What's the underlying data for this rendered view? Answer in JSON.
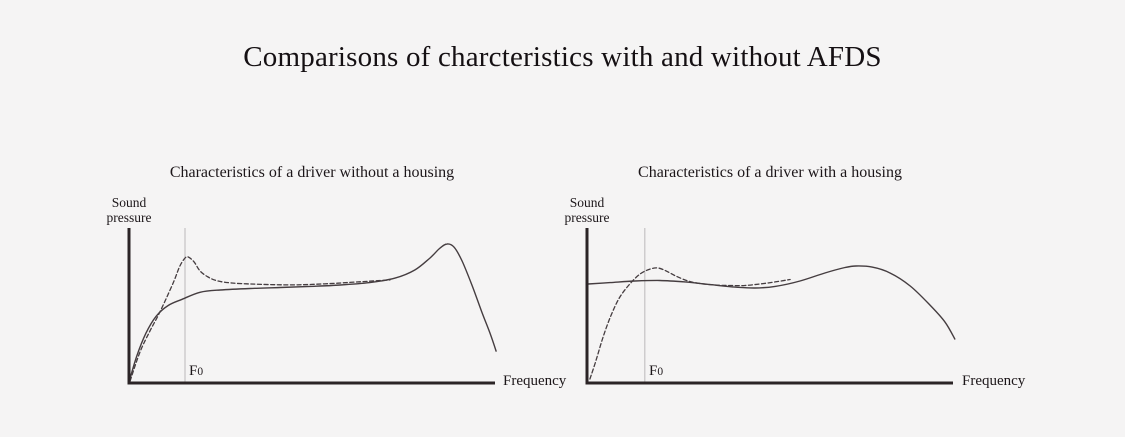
{
  "page": {
    "background": "#f5f4f4"
  },
  "title": "Comparisons of charcteristics with and without AFDS",
  "colors": {
    "text": "#1a1416",
    "axis": "#2b2426",
    "curve": "#453d40",
    "f0_line": "#bcb9ba"
  },
  "chart_data": [
    {
      "type": "line",
      "title": "Characteristics of a driver without a housing",
      "xlabel": "Frequency",
      "ylabel": "Sound pressure",
      "x_axis": {
        "type": "qualitative",
        "ticks": [],
        "range": [
          0,
          100
        ]
      },
      "y_axis": {
        "type": "qualitative",
        "ticks": [],
        "range": [
          0,
          100
        ]
      },
      "grid": false,
      "legend": false,
      "annotations": [
        {
          "type": "vline",
          "label": "F0",
          "label_main": "F",
          "label_sub": "0",
          "x": 15.3
        }
      ],
      "series": [
        {
          "name": "dashed",
          "style": "dashed",
          "points": [
            [
              0.3,
              1.3
            ],
            [
              3,
              20
            ],
            [
              5.7,
              33.5
            ],
            [
              7.9,
              43.2
            ],
            [
              10.1,
              54.2
            ],
            [
              12.3,
              65.8
            ],
            [
              13.9,
              75.5
            ],
            [
              15.3,
              80.6
            ],
            [
              16.2,
              81.3
            ],
            [
              17.8,
              78.1
            ],
            [
              19.4,
              72.3
            ],
            [
              21.6,
              68.4
            ],
            [
              24.3,
              65.8
            ],
            [
              28.1,
              64.5
            ],
            [
              33.1,
              63.9
            ],
            [
              38.5,
              63.5
            ],
            [
              44,
              63.3
            ],
            [
              50,
              63.6
            ],
            [
              57,
              64.4
            ],
            [
              63,
              65.3
            ],
            [
              68,
              66
            ],
            [
              71.3,
              66.5
            ]
          ]
        },
        {
          "name": "solid",
          "style": "solid",
          "points": [
            [
              0,
              0.5
            ],
            [
              2.2,
              18
            ],
            [
              4.6,
              32
            ],
            [
              7.4,
              43
            ],
            [
              10.7,
              50
            ],
            [
              14.5,
              54
            ],
            [
              19.4,
              58.5
            ],
            [
              24.9,
              60
            ],
            [
              33.1,
              61
            ],
            [
              41.3,
              61.6
            ],
            [
              49.5,
              62.3
            ],
            [
              57.7,
              63.2
            ],
            [
              65.8,
              64.8
            ],
            [
              72.7,
              67.7
            ],
            [
              78.1,
              72.9
            ],
            [
              82.2,
              80.6
            ],
            [
              85,
              87.1
            ],
            [
              86.9,
              89.7
            ],
            [
              88.8,
              87.7
            ],
            [
              91,
              78.7
            ],
            [
              93.7,
              63.2
            ],
            [
              96.4,
              45.8
            ],
            [
              98.6,
              32.3
            ],
            [
              100.3,
              20.6
            ]
          ]
        }
      ]
    },
    {
      "type": "line",
      "title": "Characteristics of a driver with a housing",
      "xlabel": "Frequency",
      "ylabel": "Sound pressure",
      "x_axis": {
        "type": "qualitative",
        "ticks": [],
        "range": [
          0,
          100
        ]
      },
      "y_axis": {
        "type": "qualitative",
        "ticks": [],
        "range": [
          0,
          100
        ]
      },
      "grid": false,
      "legend": false,
      "annotations": [
        {
          "type": "vline",
          "label": "F0",
          "label_main": "F",
          "label_sub": "0",
          "x": 15.8
        }
      ],
      "series": [
        {
          "name": "dashed",
          "style": "dashed",
          "points": [
            [
              0.8,
              2.6
            ],
            [
              2.5,
              14.8
            ],
            [
              4.4,
              29.7
            ],
            [
              6.6,
              43.9
            ],
            [
              9,
              55.5
            ],
            [
              11.7,
              63.9
            ],
            [
              14.5,
              70.3
            ],
            [
              17.2,
              73.5
            ],
            [
              19.4,
              74.2
            ],
            [
              21.6,
              72.3
            ],
            [
              24.3,
              69
            ],
            [
              27.6,
              65.8
            ],
            [
              30.9,
              64.2
            ],
            [
              35,
              63.2
            ],
            [
              39.1,
              62.9
            ],
            [
              43.2,
              62.9
            ],
            [
              47.3,
              63.9
            ],
            [
              51.4,
              65.2
            ],
            [
              55.5,
              66.8
            ]
          ]
        },
        {
          "name": "solid",
          "style": "solid",
          "points": [
            [
              0.3,
              63.9
            ],
            [
              6.3,
              64.8
            ],
            [
              13.1,
              65.8
            ],
            [
              19.9,
              66.1
            ],
            [
              26.8,
              65.2
            ],
            [
              33.6,
              63.5
            ],
            [
              40.4,
              61.9
            ],
            [
              45.9,
              61.3
            ],
            [
              51.4,
              62.3
            ],
            [
              58.2,
              65.8
            ],
            [
              65,
              71
            ],
            [
              70.5,
              74.5
            ],
            [
              73.5,
              75.5
            ],
            [
              77.9,
              74.8
            ],
            [
              82.8,
              71
            ],
            [
              88.3,
              62.6
            ],
            [
              93.7,
              50.3
            ],
            [
              97.8,
              39.4
            ],
            [
              100.5,
              28.4
            ]
          ]
        }
      ]
    }
  ]
}
